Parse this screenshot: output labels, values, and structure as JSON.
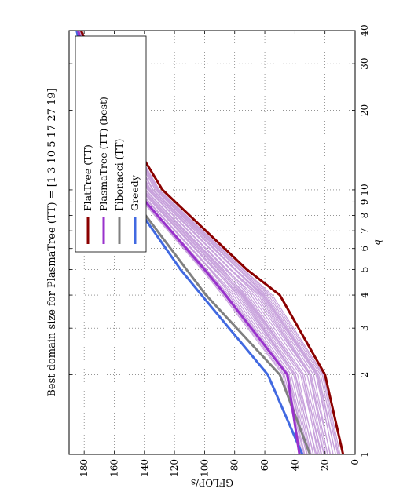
{
  "chart_data": {
    "type": "line",
    "title": "Best domain size for PlasmaTree (TT) = [1 3 10 5 17 27 19]",
    "xlabel": "q",
    "ylabel": "GFLOP/s",
    "x_scale": "log",
    "xlim": [
      1,
      40
    ],
    "ylim": [
      0,
      190
    ],
    "x_ticks": [
      1,
      2,
      3,
      4,
      5,
      6,
      7,
      8,
      9,
      10,
      20,
      30,
      40
    ],
    "x_tick_labels": [
      "1",
      "2",
      "3",
      "4",
      "5",
      "6",
      "7",
      "8",
      "9",
      "10",
      "20",
      "30",
      "40"
    ],
    "y_ticks": [
      0,
      20,
      40,
      60,
      80,
      100,
      120,
      140,
      160,
      180
    ],
    "grid": true,
    "legend_position": "top-right",
    "x": [
      1,
      2,
      4,
      5,
      10,
      20,
      40
    ],
    "series": [
      {
        "name": "FlatTree (TT)",
        "color": "#8b0000",
        "values": [
          8,
          20,
          50,
          72,
          128,
          160,
          182
        ]
      },
      {
        "name": "PlasmaTree (TT) (best)",
        "color": "#9932cc",
        "values": [
          37,
          45,
          86,
          100,
          146,
          170,
          184
        ]
      },
      {
        "name": "Fibonacci (TT)",
        "color": "#808080",
        "values": [
          30,
          50,
          99,
          112,
          152,
          171,
          184
        ]
      },
      {
        "name": "Greedy",
        "color": "#4169e1",
        "values": [
          35,
          58,
          102,
          116,
          153,
          172,
          185
        ]
      }
    ],
    "background_band": {
      "color": "#c8a2dc",
      "count": 30,
      "lower": [
        10,
        21,
        55,
        74,
        130,
        161,
        182
      ],
      "upper": [
        35,
        48,
        88,
        102,
        148,
        171,
        184
      ]
    }
  },
  "legend": {
    "flattree": "FlatTree (TT)",
    "plasmatree": "PlasmaTree (TT) (best)",
    "fibonacci": "Fibonacci (TT)",
    "greedy": "Greedy"
  }
}
